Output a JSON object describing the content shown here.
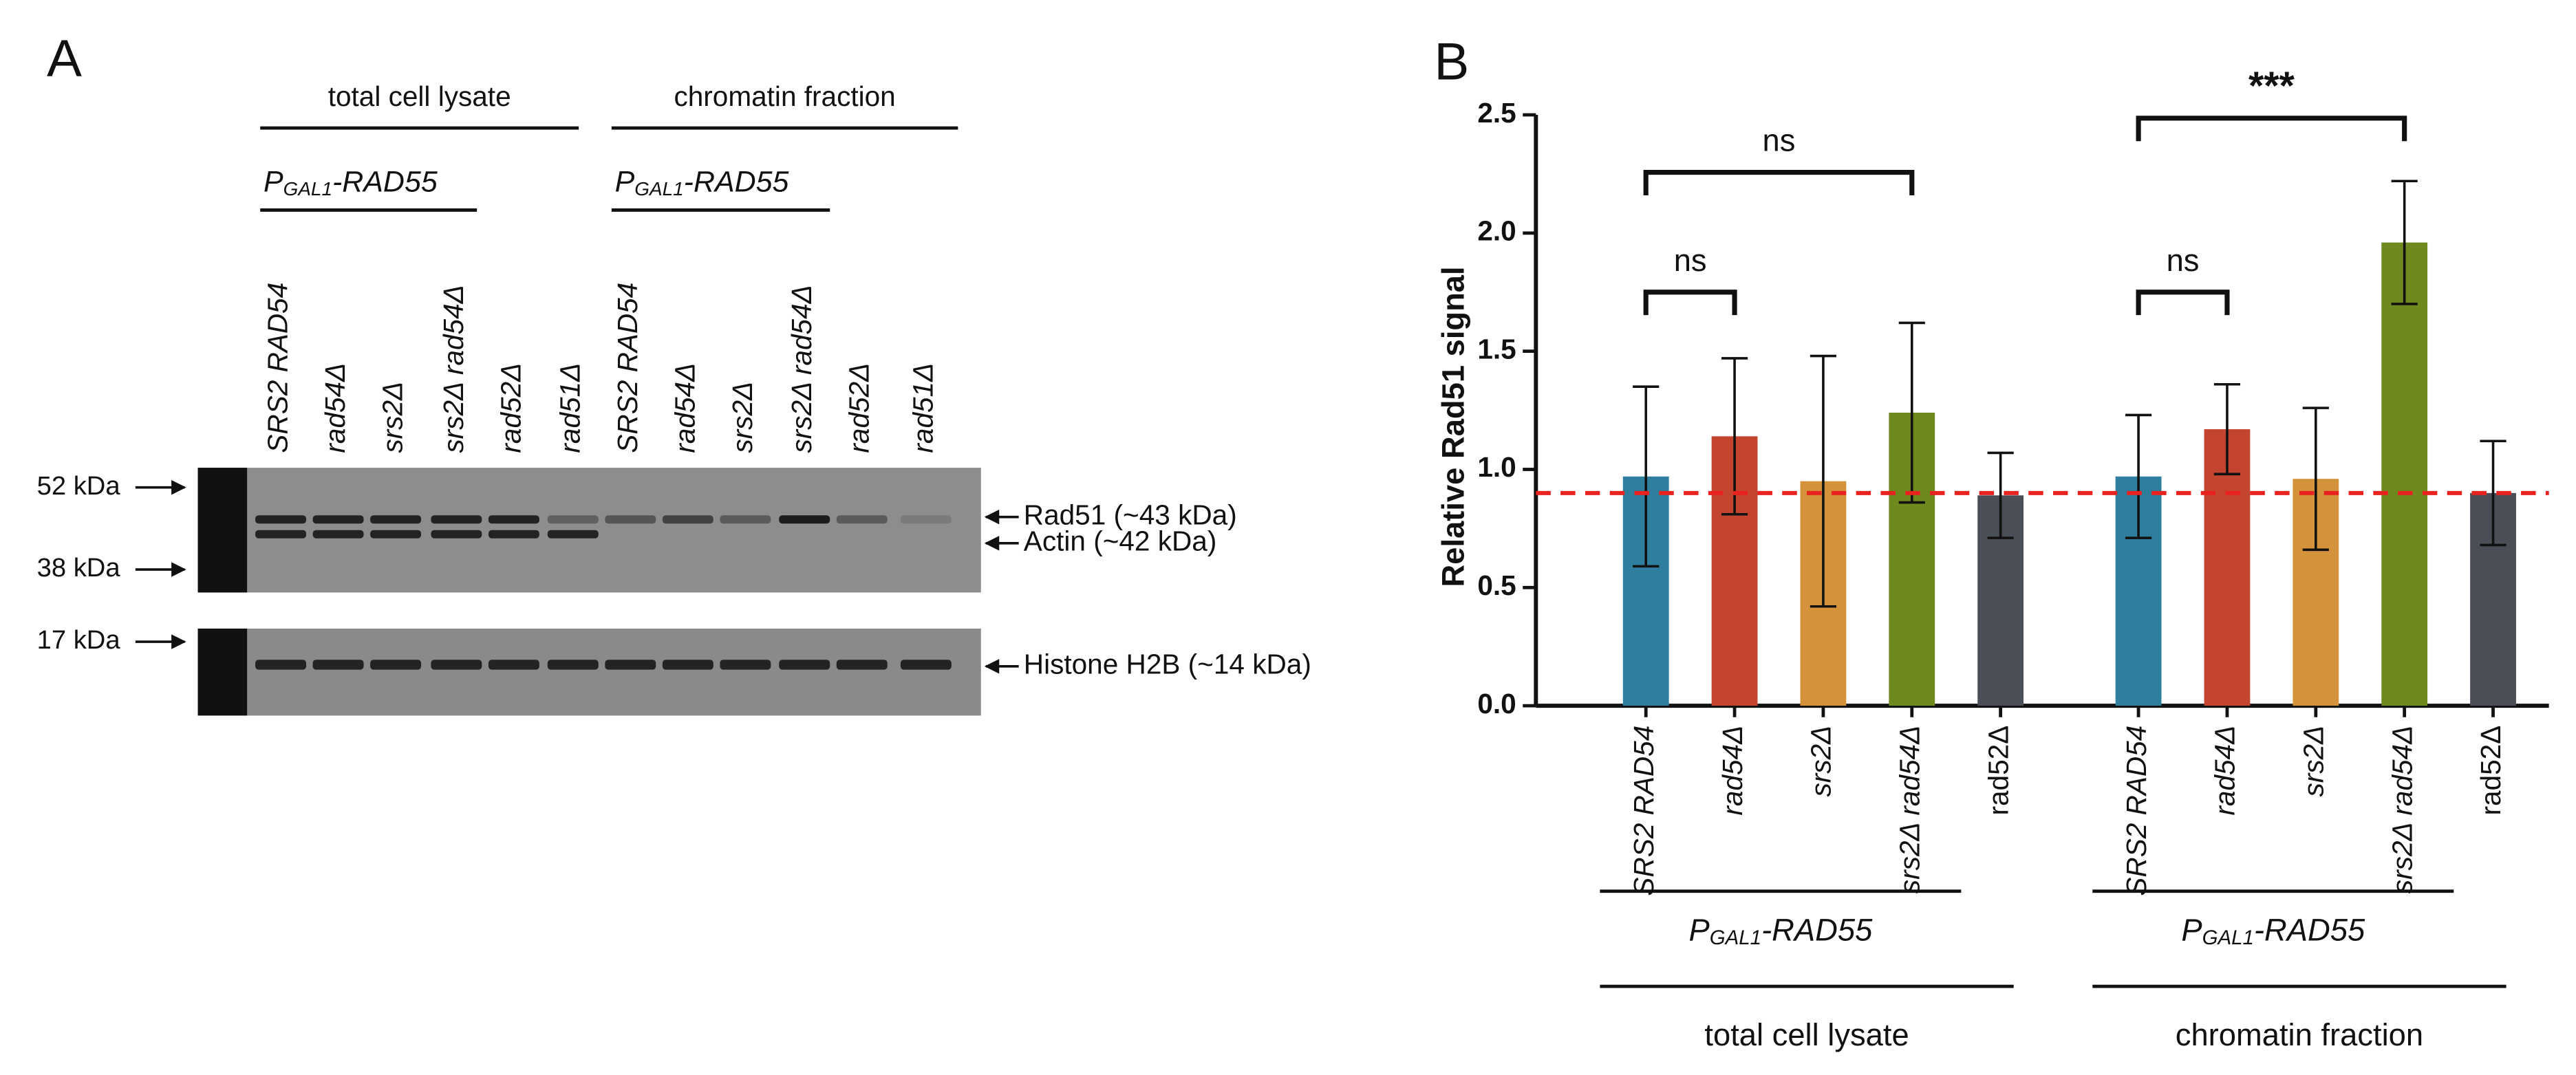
{
  "panel_a": {
    "label": "A",
    "headers": [
      "total cell lysate",
      "chromatin fraction"
    ],
    "promoter": {
      "main": "P",
      "sub": "GAL1",
      "rest": "-RAD55"
    },
    "lanes": [
      "SRS2 RAD54",
      "rad54Δ",
      "srs2Δ",
      "srs2Δ rad54Δ",
      "rad52Δ",
      "rad51Δ",
      "SRS2 RAD54",
      "rad54Δ",
      "srs2Δ",
      "srs2Δ rad54Δ",
      "rad52Δ",
      "rad51Δ"
    ],
    "markers": [
      "52 kDa",
      "38 kDa",
      "17 kDa"
    ],
    "bands": [
      "Rad51 (~43 kDa)",
      "Actin (~42 kDa)",
      "Histone H2B (~14 kDa)"
    ]
  },
  "panel_b": {
    "label": "B"
  },
  "chart_data": {
    "type": "bar",
    "ylabel": "Relative Rad51 signal",
    "categories": [
      "SRS2 RAD54",
      "rad54Δ",
      "srs2Δ",
      "srs2Δ rad54Δ",
      "rad52Δ",
      "SRS2 RAD54",
      "rad54Δ",
      "srs2Δ",
      "srs2Δ rad54Δ",
      "rad52Δ"
    ],
    "values": [
      0.97,
      1.14,
      0.95,
      1.24,
      0.89,
      0.97,
      1.17,
      0.96,
      1.96,
      0.9
    ],
    "errors": [
      0.38,
      0.33,
      0.53,
      0.38,
      0.18,
      0.26,
      0.19,
      0.3,
      0.26,
      0.22
    ],
    "colors": [
      "#2e7f9e",
      "#c4452f",
      "#d4933a",
      "#6e8a1e",
      "#4a4f57",
      "#2e7f9e",
      "#c4452f",
      "#d4933a",
      "#6e8a1e",
      "#4a4f57"
    ],
    "ylim": [
      0,
      2.5
    ],
    "yticks": [
      {
        "value": 0,
        "label": "0.0"
      },
      {
        "value": 0.5,
        "label": "0.5"
      },
      {
        "value": 1,
        "label": "1.0"
      },
      {
        "value": 1.5,
        "label": "1.5"
      },
      {
        "value": 2,
        "label": "2.0"
      },
      {
        "value": 2.5,
        "label": "2.5"
      }
    ],
    "reference_line": 0.9,
    "reference_color": "#e8231f",
    "comparisons": [
      {
        "from": 0,
        "to": 3,
        "label": "ns"
      },
      {
        "from": 0,
        "to": 1,
        "label": "ns"
      },
      {
        "from": 5,
        "to": 6,
        "label": "ns"
      },
      {
        "from": 5,
        "to": 8,
        "label": "***"
      }
    ],
    "promoter": {
      "main": "P",
      "sub": "GAL1",
      "rest": "-RAD55"
    },
    "groups": [
      "total cell lysate",
      "chromatin fraction"
    ]
  }
}
